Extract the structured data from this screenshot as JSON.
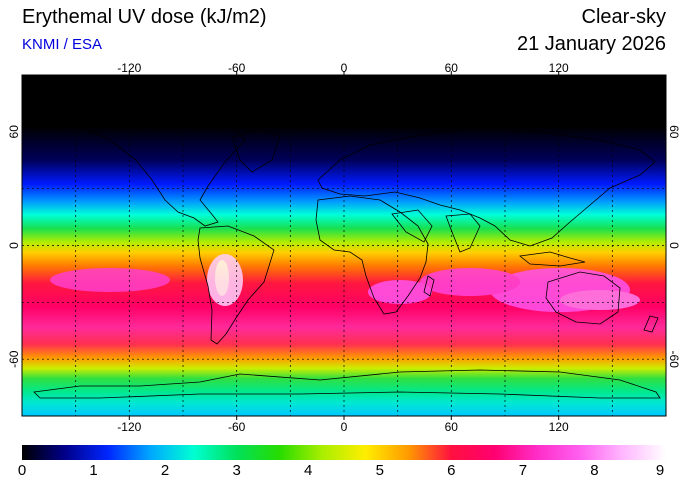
{
  "header": {
    "title": "Erythemal UV dose (kJ/m2)",
    "subtitle": "KNMI / ESA",
    "condition": "Clear-sky",
    "date": "21 January 2026"
  },
  "colors": {
    "subtitle": "#0000dd",
    "gradient_stops": [
      "#000000",
      "#00008a",
      "#0026ff",
      "#00a8ff",
      "#00ffd2",
      "#00e05a",
      "#27dc00",
      "#aaee00",
      "#ffee00",
      "#ff9a00",
      "#ff1040",
      "#ff0070",
      "#ff2dc8",
      "#ff60f0",
      "#ffb8ff",
      "#ffffff"
    ]
  },
  "map": {
    "lon_ticks": [
      "-120",
      "-60",
      "0",
      "60",
      "120"
    ],
    "lat_ticks": [
      "60",
      "0",
      "-60"
    ]
  },
  "colorbar": {
    "ticks": [
      "0",
      "1",
      "2",
      "3",
      "4",
      "5",
      "6",
      "7",
      "8",
      "9"
    ],
    "min": 0,
    "max": 9
  }
}
